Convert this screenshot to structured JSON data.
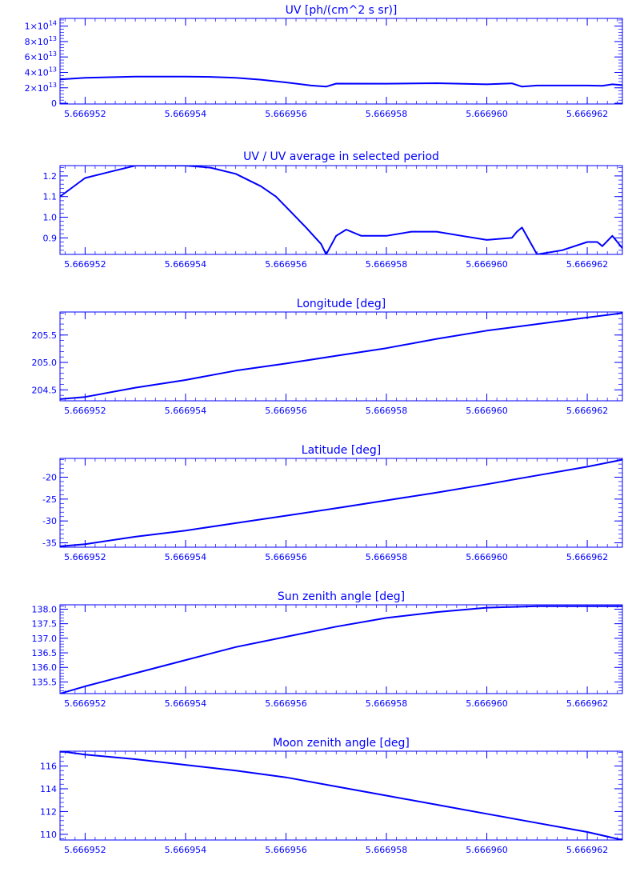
{
  "figure": {
    "background": "#ffffff",
    "color": "#0000ff"
  },
  "chart_data": [
    {
      "type": "line",
      "title": "UV [ph/(cm^2 s sr)]",
      "xlim": [
        5.6669515,
        5.6669627
      ],
      "ylim": [
        -1000000000000,
        110000000000000
      ],
      "x_ticks": [
        5.666952,
        5.666954,
        5.666956,
        5.666958,
        5.66696,
        5.666962
      ],
      "x_tick_labels": [
        "5.666952",
        "5.666954",
        "5.666956",
        "5.666958",
        "5.666960",
        "5.666962"
      ],
      "y_ticks": [
        0,
        20000000000000,
        40000000000000,
        60000000000000,
        80000000000000,
        100000000000000
      ],
      "y_tick_labels": [
        {
          "base": "0",
          "exp": ""
        },
        {
          "base": "2×10",
          "exp": "13"
        },
        {
          "base": "4×10",
          "exp": "13"
        },
        {
          "base": "6×10",
          "exp": "13"
        },
        {
          "base": "8×10",
          "exp": "13"
        },
        {
          "base": "1×10",
          "exp": "14"
        }
      ],
      "series": [
        {
          "x": [
            5.6669515,
            5.666952,
            5.666953,
            5.666954,
            5.6669545,
            5.666955,
            5.6669555,
            5.666956,
            5.6669565,
            5.6669568,
            5.666957,
            5.666958,
            5.666959,
            5.66696,
            5.6669605,
            5.6669607,
            5.666961,
            5.666962,
            5.6669623,
            5.6669625,
            5.6669627
          ],
          "y": [
            31000000000000,
            33000000000000,
            34500000000000,
            34500000000000,
            34200000000000,
            33000000000000,
            30500000000000,
            27000000000000,
            23000000000000,
            21500000000000,
            25500000000000,
            25300000000000,
            26000000000000,
            24500000000000,
            25800000000000,
            21500000000000,
            23000000000000,
            23000000000000,
            22500000000000,
            24500000000000,
            23500000000000
          ]
        }
      ]
    },
    {
      "type": "line",
      "title": "UV / UV average in selected period",
      "xlim": [
        5.6669515,
        5.6669627
      ],
      "ylim": [
        0.82,
        1.25
      ],
      "x_ticks": [
        5.666952,
        5.666954,
        5.666956,
        5.666958,
        5.66696,
        5.666962
      ],
      "x_tick_labels": [
        "5.666952",
        "5.666954",
        "5.666956",
        "5.666958",
        "5.666960",
        "5.666962"
      ],
      "y_ticks": [
        0.9,
        1.0,
        1.1,
        1.2
      ],
      "y_tick_labels": [
        "0.9",
        "1.0",
        "1.1",
        "1.2"
      ],
      "series": [
        {
          "x": [
            5.6669515,
            5.666952,
            5.6669525,
            5.666953,
            5.6669533,
            5.666954,
            5.6669545,
            5.666955,
            5.6669555,
            5.6669558,
            5.666956,
            5.6669564,
            5.6669567,
            5.6669568,
            5.666957,
            5.6669572,
            5.6669575,
            5.666958,
            5.6669585,
            5.666959,
            5.6669595,
            5.66696,
            5.6669605,
            5.6669606,
            5.6669607,
            5.666961,
            5.6669615,
            5.666962,
            5.6669622,
            5.6669623,
            5.6669625,
            5.6669627
          ],
          "y": [
            1.1,
            1.19,
            1.22,
            1.25,
            1.25,
            1.25,
            1.24,
            1.21,
            1.15,
            1.1,
            1.05,
            0.95,
            0.87,
            0.82,
            0.91,
            0.94,
            0.91,
            0.91,
            0.93,
            0.93,
            0.91,
            0.89,
            0.9,
            0.93,
            0.95,
            0.82,
            0.84,
            0.88,
            0.88,
            0.86,
            0.91,
            0.85
          ]
        }
      ]
    },
    {
      "type": "line",
      "title": "Longitude [deg]",
      "xlim": [
        5.6669515,
        5.6669627
      ],
      "ylim": [
        204.3,
        205.92
      ],
      "x_ticks": [
        5.666952,
        5.666954,
        5.666956,
        5.666958,
        5.66696,
        5.666962
      ],
      "x_tick_labels": [
        "5.666952",
        "5.666954",
        "5.666956",
        "5.666958",
        "5.666960",
        "5.666962"
      ],
      "y_ticks": [
        204.5,
        205.0,
        205.5
      ],
      "y_tick_labels": [
        "204.5",
        "205.0",
        "205.5"
      ],
      "series": [
        {
          "x": [
            5.6669515,
            5.666952,
            5.666953,
            5.666954,
            5.666955,
            5.666956,
            5.666957,
            5.666958,
            5.666959,
            5.66696,
            5.666961,
            5.666962,
            5.6669627
          ],
          "y": [
            204.33,
            204.37,
            204.54,
            204.68,
            204.85,
            204.98,
            205.12,
            205.26,
            205.43,
            205.58,
            205.7,
            205.82,
            205.9
          ]
        }
      ]
    },
    {
      "type": "line",
      "title": "Latitude [deg]",
      "xlim": [
        5.6669515,
        5.6669627
      ],
      "ylim": [
        -36,
        -15.7
      ],
      "x_ticks": [
        5.666952,
        5.666954,
        5.666956,
        5.666958,
        5.66696,
        5.666962
      ],
      "x_tick_labels": [
        "5.666952",
        "5.666954",
        "5.666956",
        "5.666958",
        "5.666960",
        "5.666962"
      ],
      "y_ticks": [
        -35,
        -30,
        -25,
        -20
      ],
      "y_tick_labels": [
        "-35",
        "-30",
        "-25",
        "-20"
      ],
      "series": [
        {
          "x": [
            5.6669515,
            5.666952,
            5.666953,
            5.666954,
            5.666955,
            5.666956,
            5.666957,
            5.666958,
            5.666959,
            5.66696,
            5.666961,
            5.666962,
            5.6669627
          ],
          "y": [
            -35.8,
            -35.3,
            -33.6,
            -32.2,
            -30.5,
            -28.8,
            -27.1,
            -25.3,
            -23.5,
            -21.6,
            -19.6,
            -17.6,
            -16.0
          ]
        }
      ]
    },
    {
      "type": "line",
      "title": "Sun zenith angle [deg]",
      "xlim": [
        5.6669515,
        5.6669627
      ],
      "ylim": [
        135.1,
        138.15
      ],
      "x_ticks": [
        5.666952,
        5.666954,
        5.666956,
        5.666958,
        5.66696,
        5.666962
      ],
      "x_tick_labels": [
        "5.666952",
        "5.666954",
        "5.666956",
        "5.666958",
        "5.666960",
        "5.666962"
      ],
      "y_ticks": [
        135.5,
        136.0,
        136.5,
        137.0,
        137.5,
        138.0
      ],
      "y_tick_labels": [
        "135.5",
        "136.0",
        "136.5",
        "137.0",
        "137.5",
        "138.0"
      ],
      "series": [
        {
          "x": [
            5.6669515,
            5.666952,
            5.666953,
            5.666954,
            5.666955,
            5.666956,
            5.666957,
            5.666958,
            5.666959,
            5.66696,
            5.666961,
            5.666962,
            5.6669627
          ],
          "y": [
            135.1,
            135.35,
            135.8,
            136.25,
            136.7,
            137.05,
            137.4,
            137.7,
            137.9,
            138.05,
            138.1,
            138.1,
            138.1
          ]
        }
      ]
    },
    {
      "type": "line",
      "title": "Moon zenith angle [deg]",
      "xlim": [
        5.6669515,
        5.6669627
      ],
      "ylim": [
        109.5,
        117.3
      ],
      "x_ticks": [
        5.666952,
        5.666954,
        5.666956,
        5.666958,
        5.66696,
        5.666962
      ],
      "x_tick_labels": [
        "5.666952",
        "5.666954",
        "5.666956",
        "5.666958",
        "5.666960",
        "5.666962"
      ],
      "y_ticks": [
        110,
        112,
        114,
        116
      ],
      "y_tick_labels": [
        "110",
        "112",
        "114",
        "116"
      ],
      "series": [
        {
          "x": [
            5.6669515,
            5.666952,
            5.666953,
            5.666954,
            5.666955,
            5.666956,
            5.666957,
            5.666958,
            5.666959,
            5.66696,
            5.666961,
            5.666962,
            5.6669627
          ],
          "y": [
            117.3,
            117.0,
            116.6,
            116.1,
            115.6,
            115.0,
            114.2,
            113.4,
            112.6,
            111.8,
            111.0,
            110.2,
            109.5
          ]
        }
      ]
    }
  ]
}
